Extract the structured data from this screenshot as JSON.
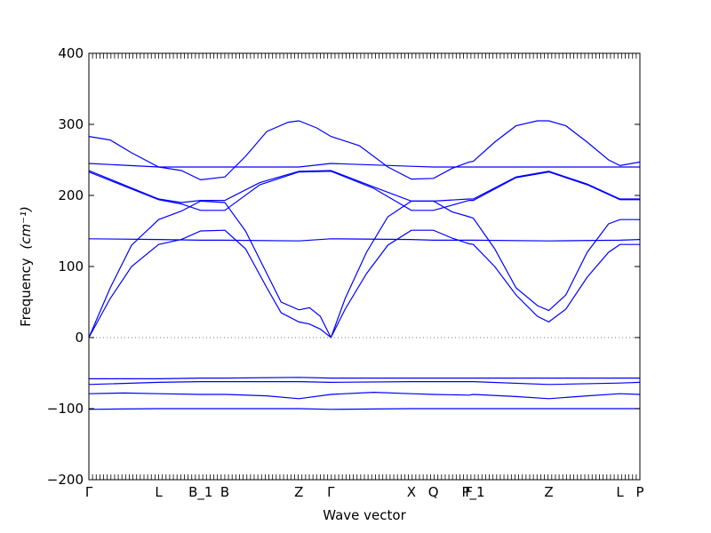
{
  "chart_data": {
    "type": "line",
    "title": "",
    "xlabel": "Wave vector",
    "ylabel": "Frequency",
    "ylabel_unit_math": "(cm⁻¹)",
    "ylim": [
      -200,
      400
    ],
    "yticks": [
      -200,
      -100,
      0,
      100,
      200,
      300,
      400
    ],
    "line_color": "#0000ff",
    "zero_line_color": "#7f7f7f",
    "zero_line_style": "dotted",
    "grid": false,
    "xaxis": {
      "min": 0,
      "max": 7.74,
      "ticks": [
        {
          "label": "Γ",
          "x": 0
        },
        {
          "label": "L",
          "x": 0.98
        },
        {
          "label": "B_1",
          "x": 1.57
        },
        {
          "label": "B",
          "x": 1.91
        },
        {
          "label": "Z",
          "x": 2.95
        },
        {
          "label": "Γ",
          "x": 3.4
        },
        {
          "label": "X",
          "x": 4.53
        },
        {
          "label": "Q",
          "x": 4.84
        },
        {
          "label": "F",
          "x": 5.34
        },
        {
          "label": "P_1",
          "x": 5.4
        },
        {
          "label": "Z",
          "x": 6.46
        },
        {
          "label": "L",
          "x": 7.46
        },
        {
          "label": "P",
          "x": 7.74
        }
      ]
    },
    "series": [
      {
        "x": [
          0,
          0.98,
          1.57,
          1.91,
          2.95,
          3.4,
          4.53,
          4.84,
          5.34,
          5.4,
          6.46,
          7.46,
          7.74
        ],
        "values": [
          -101,
          -100,
          -100,
          -100,
          -100,
          -101,
          -100,
          -100,
          -100,
          -100,
          -100,
          -100,
          -100
        ]
      },
      {
        "x": [
          0,
          0.5,
          0.98,
          1.57,
          1.91,
          2.5,
          2.95,
          3.4,
          4.0,
          4.53,
          4.84,
          5.34,
          5.4,
          6.0,
          6.46,
          7.0,
          7.46,
          7.74
        ],
        "values": [
          -79,
          -78,
          -79,
          -80,
          -80,
          -82,
          -86,
          -80,
          -77,
          -79,
          -80,
          -81,
          -80,
          -83,
          -86,
          -82,
          -79,
          -80
        ]
      },
      {
        "x": [
          0,
          0.98,
          1.57,
          1.91,
          2.95,
          3.4,
          4.53,
          4.84,
          5.34,
          5.4,
          6.46,
          7.46,
          7.74
        ],
        "values": [
          -66,
          -63,
          -62,
          -62,
          -62,
          -63,
          -62,
          -62,
          -62,
          -62,
          -66,
          -64,
          -63
        ]
      },
      {
        "x": [
          0,
          0.98,
          1.57,
          1.91,
          2.95,
          3.4,
          4.53,
          4.84,
          5.34,
          5.4,
          6.46,
          7.46,
          7.74
        ],
        "values": [
          -58,
          -58,
          -57,
          -57,
          -56,
          -57,
          -57,
          -57,
          -57,
          -57,
          -57,
          -57,
          -57
        ]
      },
      {
        "x": [
          0,
          0.3,
          0.6,
          0.98,
          1.3,
          1.57,
          1.91,
          2.2,
          2.5,
          2.7,
          2.95,
          3.1,
          3.25,
          3.4,
          3.6,
          3.9,
          4.2,
          4.53,
          4.84,
          5.1,
          5.34,
          5.4,
          5.7,
          6.0,
          6.3,
          6.46,
          6.7,
          7.0,
          7.3,
          7.46,
          7.74
        ],
        "values": [
          0,
          55,
          100,
          131,
          138,
          150,
          151,
          125,
          70,
          35,
          22,
          19,
          12,
          0,
          40,
          90,
          130,
          151,
          151,
          140,
          132,
          131,
          100,
          60,
          30,
          22,
          40,
          85,
          120,
          131,
          131
        ]
      },
      {
        "x": [
          0,
          0.98,
          1.57,
          1.91,
          2.95,
          3.4,
          4.53,
          4.84,
          5.34,
          5.4,
          6.46,
          7.46,
          7.74
        ],
        "values": [
          139,
          138,
          137,
          137,
          136,
          139,
          138,
          137,
          137,
          137,
          136,
          137,
          138
        ]
      },
      {
        "x": [
          0,
          0.3,
          0.6,
          0.98,
          1.3,
          1.57,
          1.91,
          2.2,
          2.5,
          2.7,
          2.95,
          3.1,
          3.25,
          3.4,
          3.6,
          3.9,
          4.2,
          4.53,
          4.84,
          5.1,
          5.34,
          5.4,
          5.7,
          6.0,
          6.3,
          6.46,
          6.7,
          7.0,
          7.3,
          7.46,
          7.74
        ],
        "values": [
          0,
          70,
          130,
          166,
          178,
          192,
          190,
          150,
          90,
          50,
          39,
          42,
          30,
          0,
          55,
          120,
          170,
          192,
          192,
          177,
          170,
          168,
          125,
          70,
          45,
          38,
          60,
          120,
          160,
          166,
          166
        ]
      },
      {
        "x": [
          0,
          0.98,
          1.3,
          1.57,
          1.91,
          2.4,
          2.95,
          3.4,
          4.0,
          4.53,
          4.84,
          5.34,
          5.4,
          6.0,
          6.46,
          7.0,
          7.46,
          7.74
        ],
        "values": [
          233,
          194,
          188,
          179,
          179,
          215,
          233,
          234,
          210,
          179,
          179,
          193,
          193,
          225,
          233,
          215,
          194,
          194
        ]
      },
      {
        "x": [
          0,
          0.98,
          1.3,
          1.57,
          1.91,
          2.4,
          2.95,
          3.4,
          4.0,
          4.53,
          4.84,
          5.34,
          5.4,
          6.0,
          6.46,
          7.0,
          7.46,
          7.74
        ],
        "values": [
          235,
          195,
          190,
          193,
          193,
          218,
          234,
          235,
          212,
          192,
          192,
          195,
          195,
          226,
          234,
          216,
          195,
          195
        ]
      },
      {
        "x": [
          0,
          0.98,
          1.57,
          1.91,
          2.95,
          3.4,
          4.53,
          4.84,
          5.34,
          5.4,
          6.46,
          7.46,
          7.74
        ],
        "values": [
          245,
          240,
          240,
          240,
          240,
          245,
          241,
          240,
          240,
          240,
          240,
          240,
          240
        ]
      },
      {
        "x": [
          0,
          0.3,
          0.6,
          0.98,
          1.3,
          1.57,
          1.91,
          2.2,
          2.5,
          2.8,
          2.95,
          3.2,
          3.4,
          3.8,
          4.2,
          4.53,
          4.84,
          5.1,
          5.34,
          5.4,
          5.7,
          6.0,
          6.3,
          6.46,
          6.7,
          7.0,
          7.3,
          7.46,
          7.74
        ],
        "values": [
          283,
          278,
          260,
          240,
          235,
          222,
          226,
          255,
          290,
          303,
          305,
          295,
          283,
          270,
          240,
          223,
          224,
          238,
          247,
          248,
          275,
          298,
          305,
          305,
          298,
          275,
          250,
          242,
          247
        ]
      }
    ]
  }
}
